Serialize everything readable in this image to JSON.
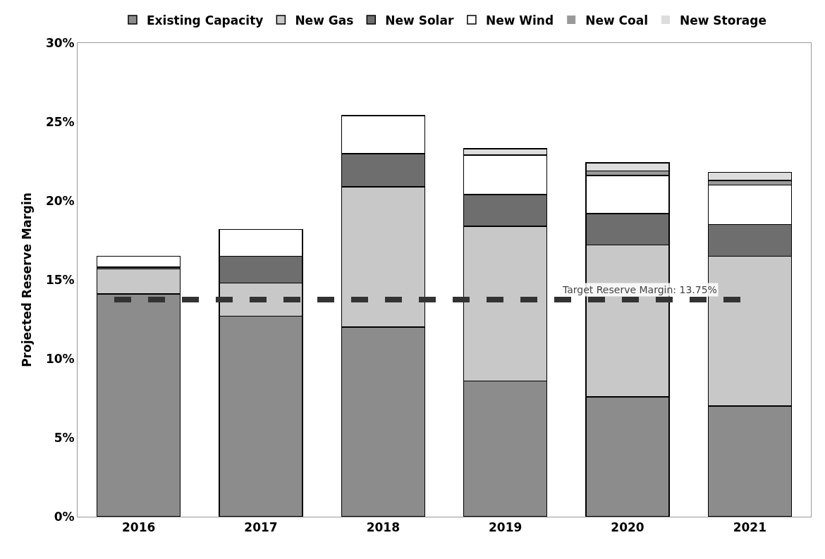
{
  "chart_data": {
    "type": "bar",
    "stacked": true,
    "ylabel": "Projected Reserve Margin",
    "categories": [
      "2016",
      "2017",
      "2018",
      "2019",
      "2020",
      "2021"
    ],
    "series": [
      {
        "name": "Existing Capacity",
        "color": "#8c8c8c",
        "values": [
          14.1,
          12.7,
          12.0,
          8.6,
          7.6,
          7.0
        ]
      },
      {
        "name": "New Gas",
        "color": "#c8c8c8",
        "values": [
          1.6,
          2.1,
          8.9,
          9.8,
          9.6,
          9.5
        ]
      },
      {
        "name": "New Solar",
        "color": "#6e6e6e",
        "values": [
          0.1,
          1.7,
          2.1,
          2.0,
          2.0,
          2.0
        ]
      },
      {
        "name": "New Wind",
        "color": "#ffffff",
        "values": [
          0.7,
          1.7,
          2.4,
          2.5,
          2.4,
          2.5
        ]
      },
      {
        "name": "New Coal",
        "color": "#999999",
        "values": [
          0,
          0,
          0,
          0,
          0.3,
          0.3
        ]
      },
      {
        "name": "New Storage",
        "color": "#dddddd",
        "values": [
          0,
          0,
          0,
          0.4,
          0.5,
          0.5
        ]
      }
    ],
    "ylim": [
      0,
      30
    ],
    "yticks": [
      {
        "value": 0,
        "label": "0%"
      },
      {
        "value": 5,
        "label": "5%"
      },
      {
        "value": 10,
        "label": "10%"
      },
      {
        "value": 15,
        "label": "15%"
      },
      {
        "value": 20,
        "label": "20%"
      },
      {
        "value": 25,
        "label": "25%"
      },
      {
        "value": 30,
        "label": "30%"
      }
    ],
    "ref_lines": [
      {
        "axis": "y",
        "value": 13.75,
        "label": "Target Reserve Margin: 13.75%",
        "color": "#333333",
        "line_style": "dashed"
      }
    ],
    "legend": "top"
  }
}
